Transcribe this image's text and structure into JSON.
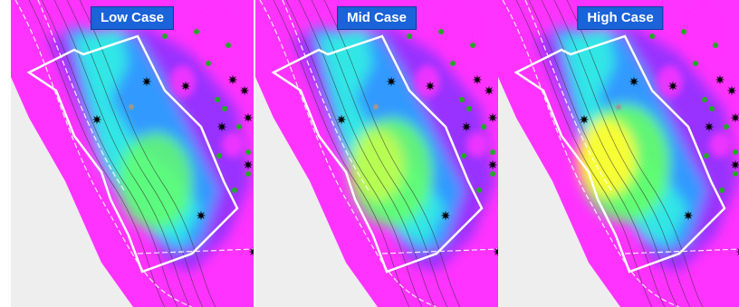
{
  "panels": [
    {
      "label": "Low Case",
      "intensity": 0.55
    },
    {
      "label": "Mid Case",
      "intensity": 0.8
    },
    {
      "label": "High Case",
      "intensity": 1.0
    }
  ],
  "colors": {
    "background_low": "#ff33ff",
    "mid_low": "#9933ff",
    "mid": "#3399ff",
    "mid_high": "#33e6e6",
    "high": "#66ff66",
    "peak": "#ffff33",
    "null_area": "#eeeeee",
    "outline": "#ffffff",
    "well_producer": "#000000",
    "well_injector": "#22aa22"
  },
  "icons": [
    "star-well-icon",
    "green-dot-well-icon",
    "grey-star-well-icon"
  ]
}
